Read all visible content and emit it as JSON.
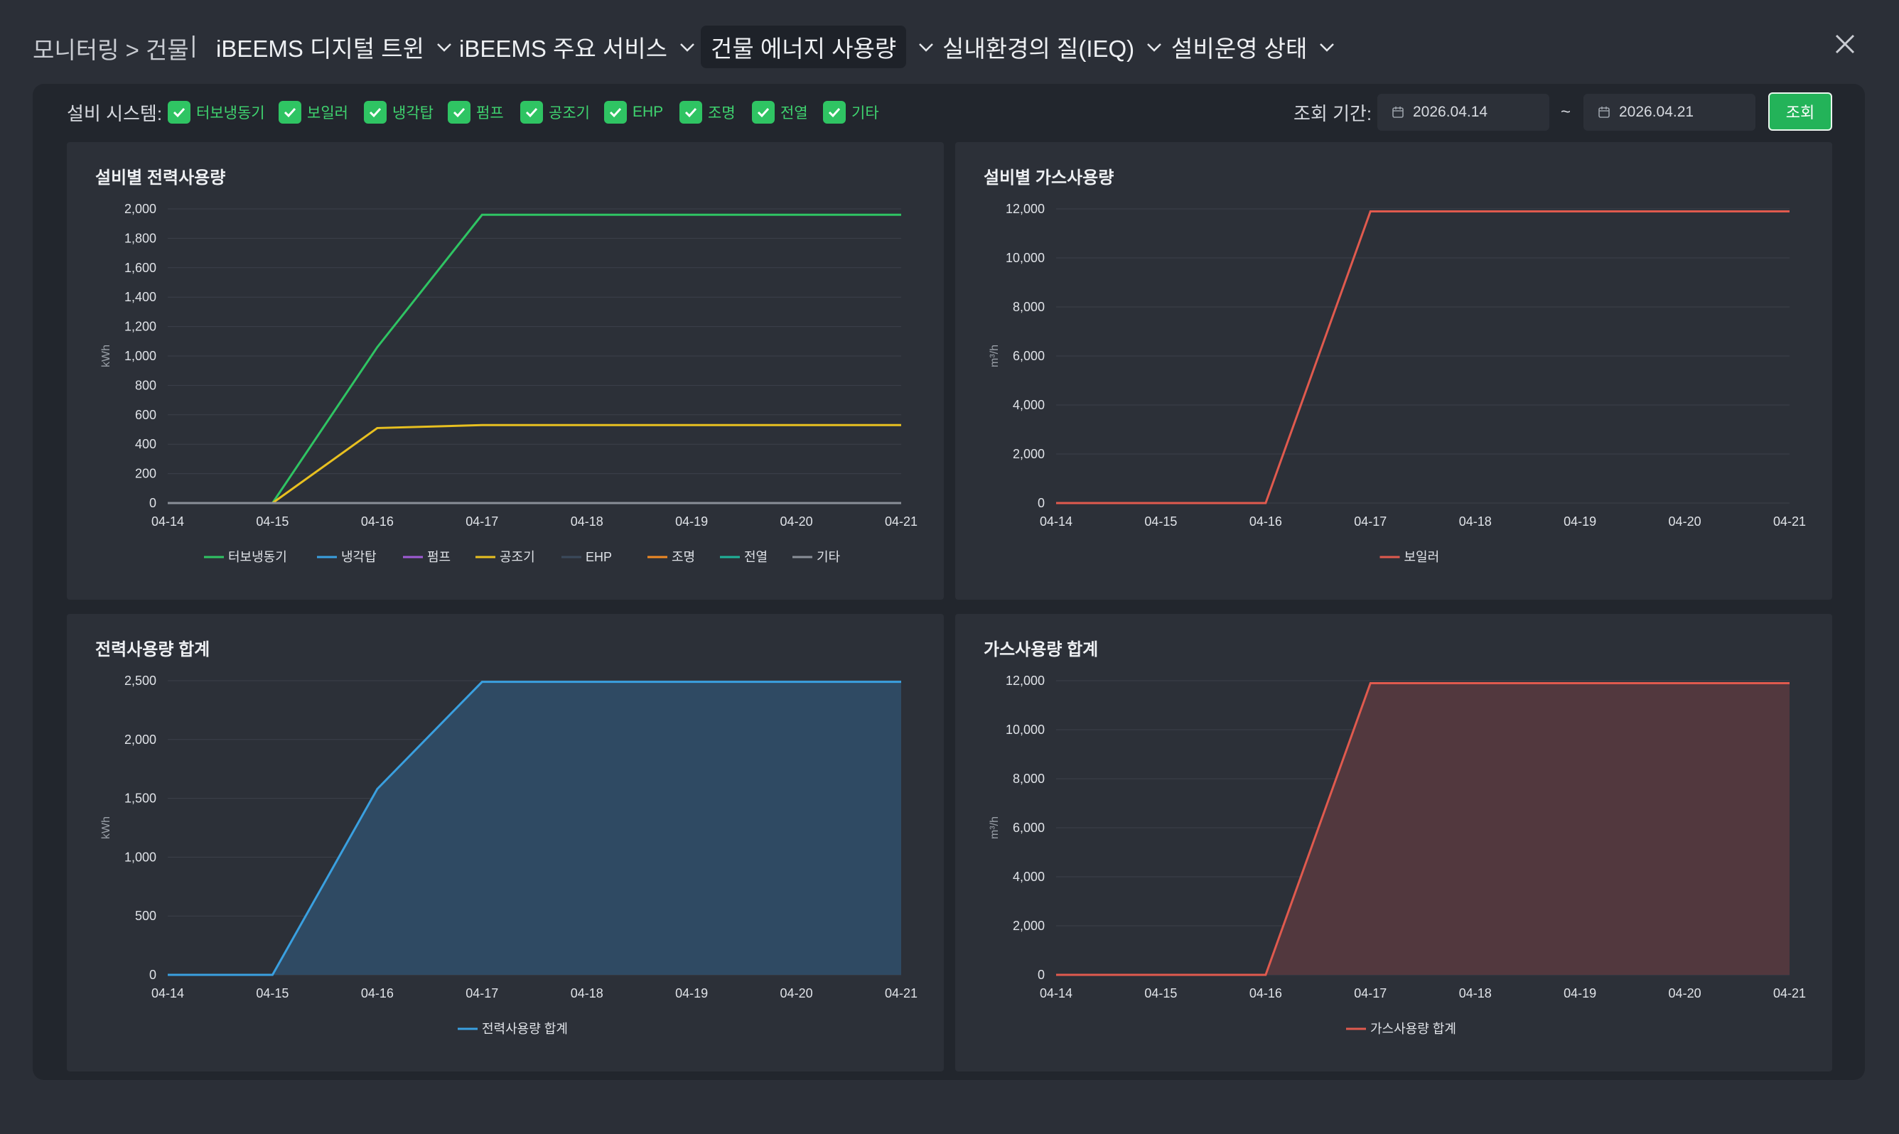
{
  "nav": {
    "breadcrumb": "모니터링 > 건물",
    "separator": "|",
    "items": [
      {
        "label": "iBEEMS 디지털 트윈"
      },
      {
        "label": "iBEEMS 주요 서비스"
      },
      {
        "label": "건물 에너지 사용량"
      },
      {
        "label": "실내환경의 질(IEQ)"
      },
      {
        "label": "설비운영 상태"
      }
    ]
  },
  "filter": {
    "system_label": "설비 시스템:",
    "systems": [
      "터보냉동기",
      "보일러",
      "냉각탑",
      "펌프",
      "공조기",
      "EHP",
      "조명",
      "전열",
      "기타"
    ],
    "period_label": "조회 기간:",
    "start_date": "2026.04.14",
    "tilde": "~",
    "end_date": "2026.04.21",
    "query_label": "조회",
    "check_color": "#2fc463"
  },
  "chart_data": [
    {
      "type": "line",
      "title": "설비별 전력사용량",
      "ylabel": "kWh",
      "x": [
        "04-14",
        "04-15",
        "04-16",
        "04-17",
        "04-18",
        "04-19",
        "04-20",
        "04-21"
      ],
      "ylim": [
        0,
        2000
      ],
      "yticks": [
        0,
        200,
        400,
        600,
        800,
        1000,
        1200,
        1400,
        1600,
        1800,
        2000
      ],
      "grid": true,
      "legend_position": "bottom",
      "series": [
        {
          "name": "터보냉동기",
          "color": "#2fc463",
          "values": [
            0,
            0,
            1060,
            1960,
            1960,
            1960,
            1960,
            1960
          ]
        },
        {
          "name": "냉각탑",
          "color": "#3aa0e0",
          "values": [
            0,
            0,
            0,
            0,
            0,
            0,
            0,
            0
          ]
        },
        {
          "name": "펌프",
          "color": "#a05bd6",
          "values": [
            0,
            0,
            0,
            0,
            0,
            0,
            0,
            0
          ]
        },
        {
          "name": "공조기",
          "color": "#e8c020",
          "values": [
            0,
            0,
            510,
            530,
            530,
            530,
            530,
            530
          ]
        },
        {
          "name": "EHP",
          "color": "#3b4a5c",
          "values": [
            0,
            0,
            0,
            0,
            0,
            0,
            0,
            0
          ]
        },
        {
          "name": "조명",
          "color": "#f08a24",
          "values": [
            0,
            0,
            0,
            0,
            0,
            0,
            0,
            0
          ]
        },
        {
          "name": "전열",
          "color": "#1fb39a",
          "values": [
            0,
            0,
            0,
            0,
            0,
            0,
            0,
            0
          ]
        },
        {
          "name": "기타",
          "color": "#8a8f98",
          "values": [
            0,
            0,
            0,
            0,
            0,
            0,
            0,
            0
          ]
        }
      ]
    },
    {
      "type": "line",
      "title": "설비별 가스사용량",
      "ylabel": "m³/h",
      "x": [
        "04-14",
        "04-15",
        "04-16",
        "04-17",
        "04-18",
        "04-19",
        "04-20",
        "04-21"
      ],
      "ylim": [
        0,
        12000
      ],
      "yticks": [
        0,
        2000,
        4000,
        6000,
        8000,
        10000,
        12000
      ],
      "grid": true,
      "legend_position": "bottom",
      "series": [
        {
          "name": "보일러",
          "color": "#e05a4e",
          "values": [
            0,
            0,
            0,
            11900,
            11900,
            11900,
            11900,
            11900
          ]
        }
      ]
    },
    {
      "type": "area",
      "title": "전력사용량 합계",
      "ylabel": "kWh",
      "x": [
        "04-14",
        "04-15",
        "04-16",
        "04-17",
        "04-18",
        "04-19",
        "04-20",
        "04-21"
      ],
      "ylim": [
        0,
        2500
      ],
      "yticks": [
        0,
        500,
        1000,
        1500,
        2000,
        2500
      ],
      "grid": true,
      "legend_position": "bottom",
      "series": [
        {
          "name": "전력사용량 합계",
          "color": "#3aa0e0",
          "fill": "#2f4a63",
          "values": [
            0,
            0,
            1580,
            2490,
            2490,
            2490,
            2490,
            2490
          ]
        }
      ]
    },
    {
      "type": "area",
      "title": "가스사용량 합계",
      "ylabel": "m³/h",
      "x": [
        "04-14",
        "04-15",
        "04-16",
        "04-17",
        "04-18",
        "04-19",
        "04-20",
        "04-21"
      ],
      "ylim": [
        0,
        12000
      ],
      "yticks": [
        0,
        2000,
        4000,
        6000,
        8000,
        10000,
        12000
      ],
      "grid": true,
      "legend_position": "bottom",
      "series": [
        {
          "name": "가스사용량 합계",
          "color": "#e05a4e",
          "fill": "#52383e",
          "values": [
            0,
            0,
            0,
            11900,
            11900,
            11900,
            11900,
            11900
          ]
        }
      ]
    }
  ]
}
